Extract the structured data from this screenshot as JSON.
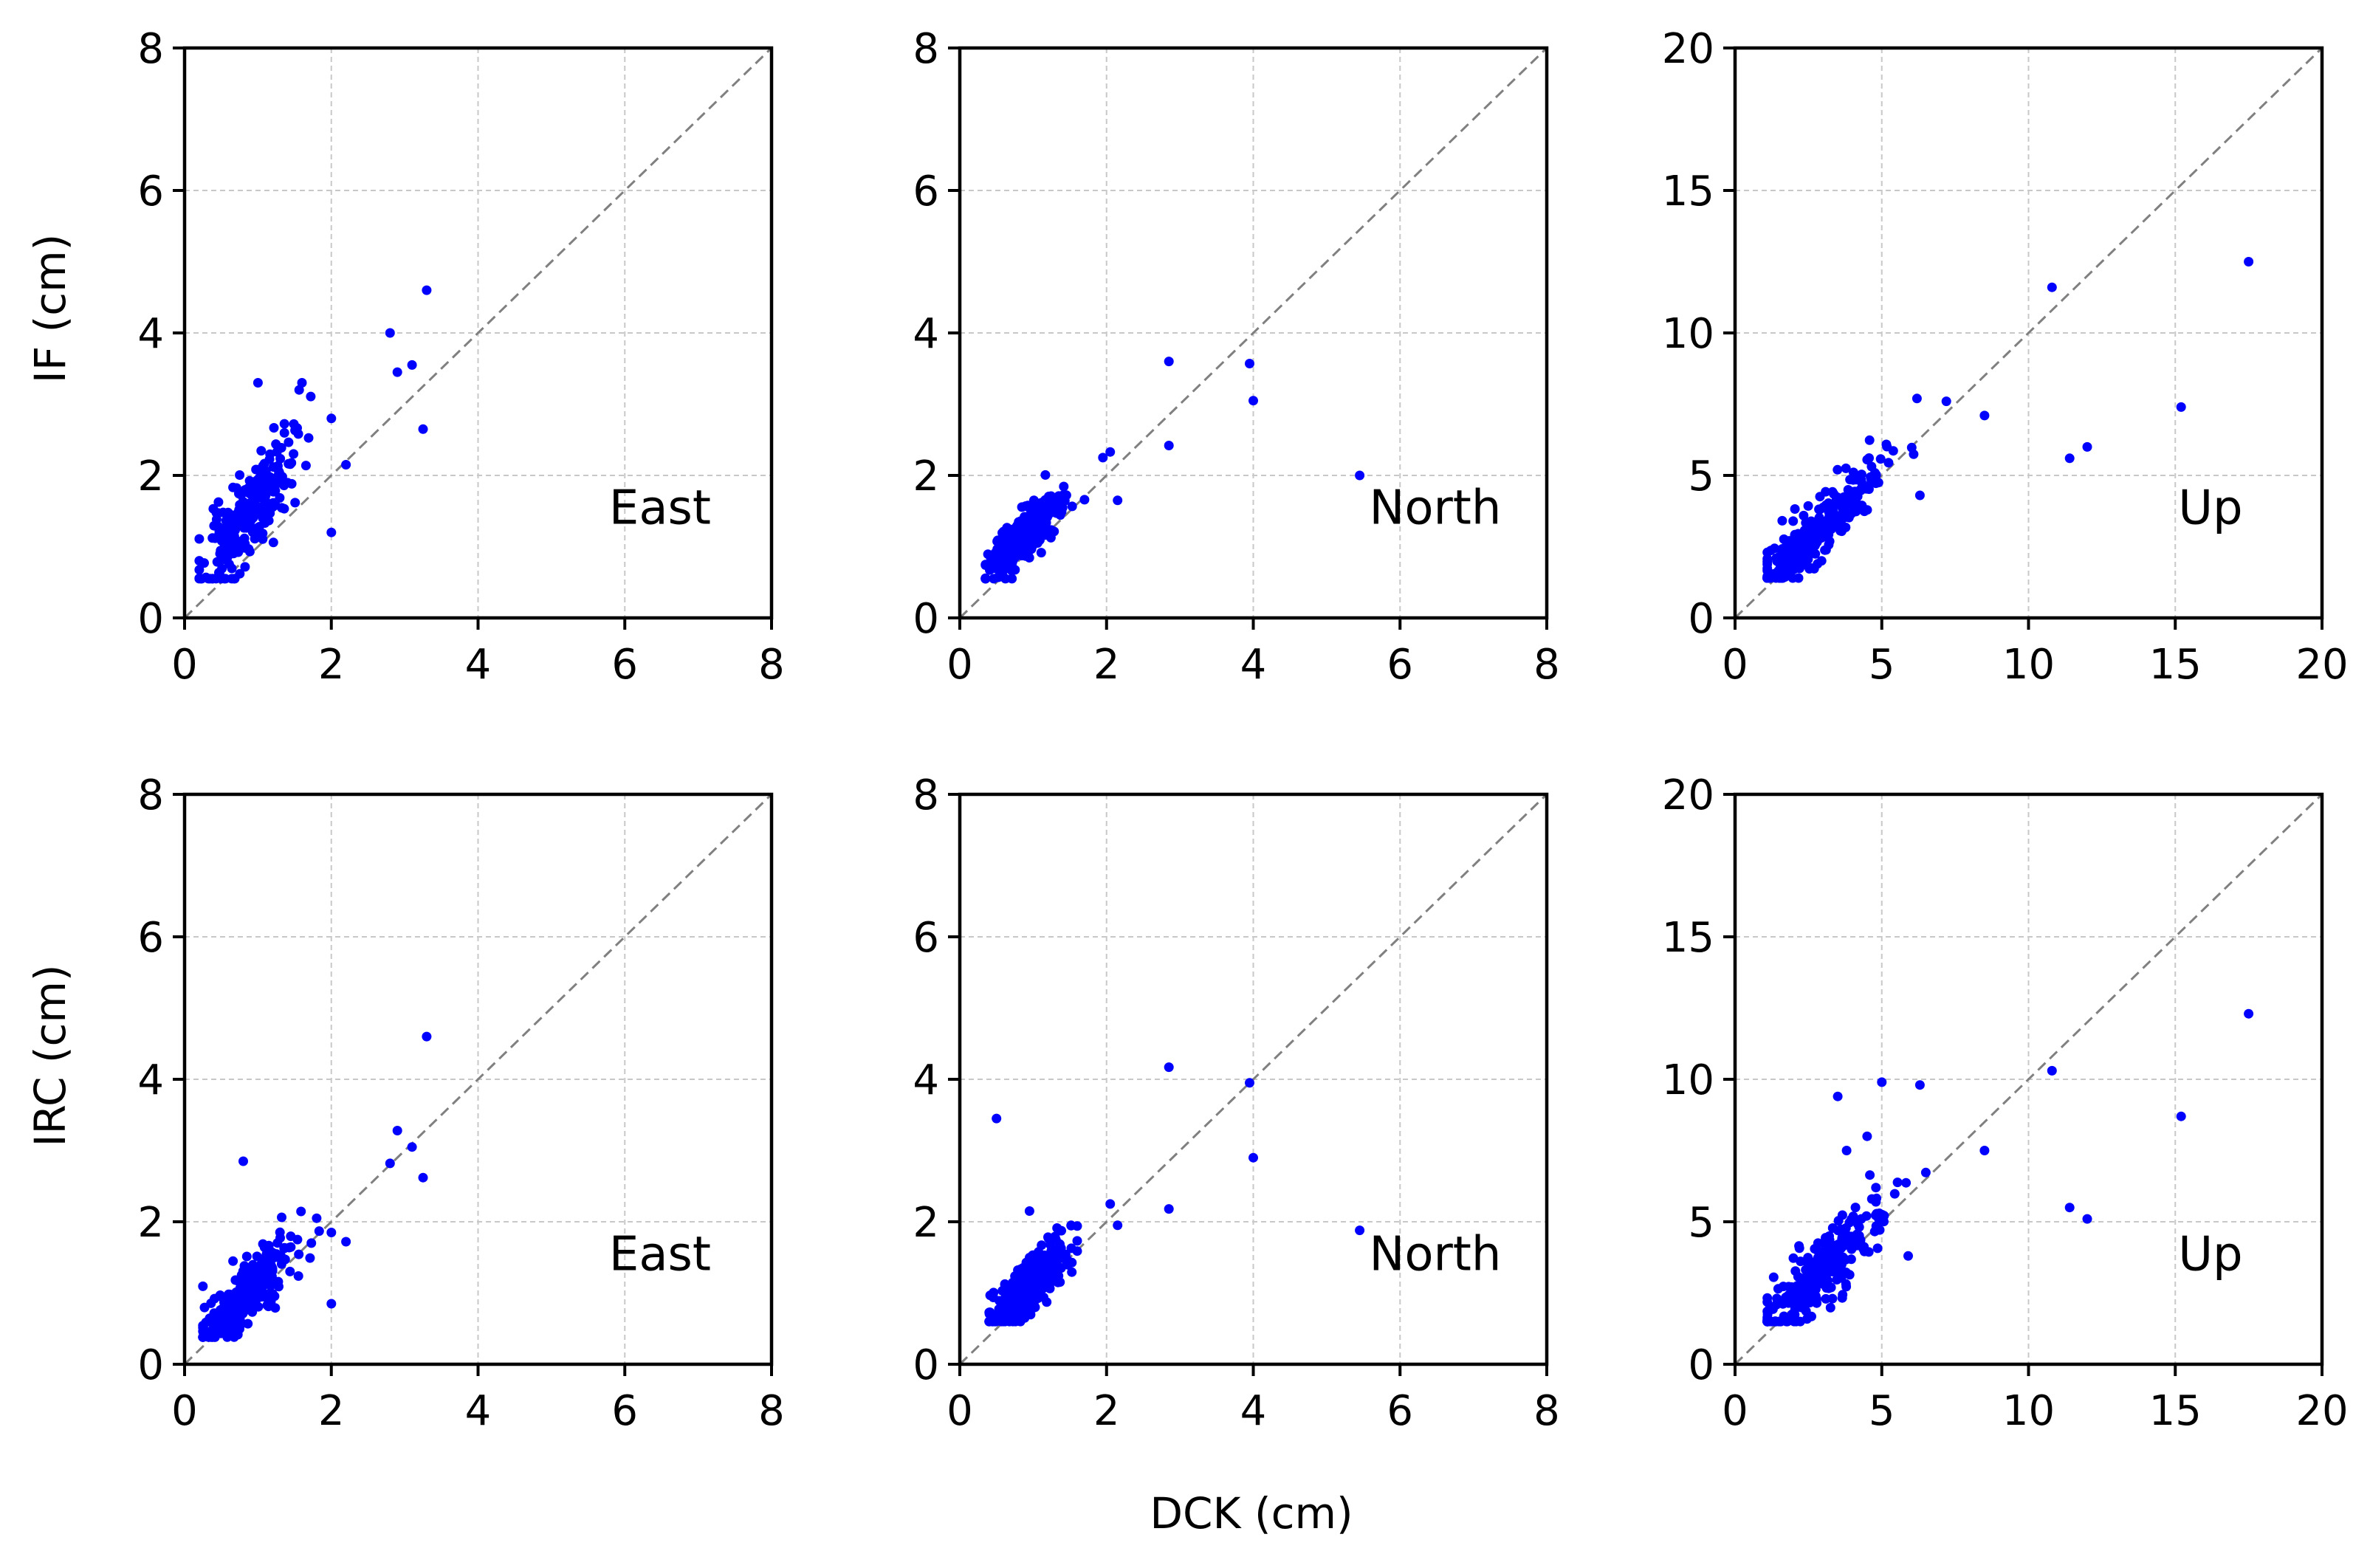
{
  "figure": {
    "xlabel": "DCK (cm)",
    "row_ylabels": [
      "IF (cm)",
      "IRC (cm)"
    ]
  },
  "colors": {
    "points": "#0000ff",
    "identity_line": "#808080",
    "grid": "#c8c8c8",
    "axes": "#000000"
  },
  "chart_data": [
    {
      "type": "scatter",
      "panel": "row1-col1",
      "annotation": "East",
      "xlabel": "",
      "ylabel": "IF (cm)",
      "xlim": [
        0,
        8
      ],
      "ylim": [
        0,
        8
      ],
      "xticks": [
        0,
        2,
        4,
        6,
        8
      ],
      "yticks": [
        0,
        2,
        4,
        6,
        8
      ],
      "grid": true,
      "identity_line": true,
      "outliers": [
        [
          3.3,
          4.6
        ],
        [
          2.8,
          4.0
        ],
        [
          3.1,
          3.55
        ],
        [
          2.9,
          3.45
        ],
        [
          3.25,
          2.65
        ],
        [
          2.2,
          2.15
        ],
        [
          2.0,
          2.8
        ],
        [
          2.0,
          1.2
        ],
        [
          1.6,
          3.3
        ],
        [
          1.0,
          3.3
        ]
      ],
      "cluster": {
        "count": 260,
        "x_mean": 0.85,
        "x_sd": 0.3,
        "x_min": 0.2,
        "x_max": 1.9,
        "slope": 1.3,
        "intercept": 0.3,
        "noise": 0.32,
        "y_min": 0.55,
        "y_max": 3.2,
        "seed": 11
      }
    },
    {
      "type": "scatter",
      "panel": "row1-col2",
      "annotation": "North",
      "xlabel": "",
      "ylabel": "",
      "xlim": [
        0,
        8
      ],
      "ylim": [
        0,
        8
      ],
      "xticks": [
        0,
        2,
        4,
        6,
        8
      ],
      "yticks": [
        0,
        2,
        4,
        6,
        8
      ],
      "grid": true,
      "identity_line": true,
      "outliers": [
        [
          2.85,
          3.6
        ],
        [
          3.95,
          3.57
        ],
        [
          4.0,
          3.05
        ],
        [
          2.85,
          2.42
        ],
        [
          5.45,
          2.0
        ],
        [
          2.15,
          1.65
        ],
        [
          2.05,
          2.33
        ],
        [
          1.95,
          2.25
        ]
      ],
      "cluster": {
        "count": 300,
        "x_mean": 0.85,
        "x_sd": 0.25,
        "x_min": 0.35,
        "x_max": 1.7,
        "slope": 1.0,
        "intercept": 0.25,
        "noise": 0.18,
        "y_min": 0.55,
        "y_max": 2.1,
        "seed": 23
      }
    },
    {
      "type": "scatter",
      "panel": "row1-col3",
      "annotation": "Up",
      "xlabel": "",
      "ylabel": "",
      "xlim": [
        0,
        20
      ],
      "ylim": [
        0,
        20
      ],
      "xticks": [
        0,
        5,
        10,
        15,
        20
      ],
      "yticks": [
        0,
        5,
        10,
        15,
        20
      ],
      "grid": true,
      "identity_line": true,
      "outliers": [
        [
          17.5,
          12.5
        ],
        [
          10.8,
          11.6
        ],
        [
          15.2,
          7.4
        ],
        [
          12.0,
          6.0
        ],
        [
          11.4,
          5.6
        ],
        [
          8.5,
          7.1
        ],
        [
          7.2,
          7.6
        ],
        [
          6.2,
          7.7
        ],
        [
          6.3,
          4.3
        ]
      ],
      "cluster": {
        "count": 280,
        "x_mean": 2.9,
        "x_sd": 1.1,
        "x_min": 1.1,
        "x_max": 6.8,
        "slope": 1.0,
        "intercept": 0.25,
        "noise": 0.5,
        "y_min": 1.4,
        "y_max": 7.5,
        "seed": 37
      }
    },
    {
      "type": "scatter",
      "panel": "row2-col1",
      "annotation": "East",
      "xlabel": "",
      "ylabel": "IRC (cm)",
      "xlim": [
        0,
        8
      ],
      "ylim": [
        0,
        8
      ],
      "xticks": [
        0,
        2,
        4,
        6,
        8
      ],
      "yticks": [
        0,
        2,
        4,
        6,
        8
      ],
      "grid": true,
      "identity_line": true,
      "outliers": [
        [
          3.3,
          4.6
        ],
        [
          2.9,
          3.28
        ],
        [
          3.1,
          3.05
        ],
        [
          2.8,
          2.82
        ],
        [
          3.25,
          2.62
        ],
        [
          2.2,
          1.72
        ],
        [
          2.0,
          1.85
        ],
        [
          2.0,
          0.85
        ],
        [
          0.8,
          2.85
        ],
        [
          1.8,
          2.05
        ]
      ],
      "cluster": {
        "count": 260,
        "x_mean": 0.85,
        "x_sd": 0.3,
        "x_min": 0.25,
        "x_max": 1.9,
        "slope": 1.0,
        "intercept": 0.15,
        "noise": 0.25,
        "y_min": 0.38,
        "y_max": 2.2,
        "seed": 41
      }
    },
    {
      "type": "scatter",
      "panel": "row2-col2",
      "annotation": "North",
      "xlabel": "DCK (cm)",
      "ylabel": "",
      "xlim": [
        0,
        8
      ],
      "ylim": [
        0,
        8
      ],
      "xticks": [
        0,
        2,
        4,
        6,
        8
      ],
      "yticks": [
        0,
        2,
        4,
        6,
        8
      ],
      "grid": true,
      "identity_line": true,
      "outliers": [
        [
          2.85,
          4.17
        ],
        [
          3.95,
          3.95
        ],
        [
          4.0,
          2.9
        ],
        [
          2.85,
          2.18
        ],
        [
          5.45,
          1.88
        ],
        [
          0.5,
          3.45
        ],
        [
          2.05,
          2.25
        ],
        [
          2.15,
          1.95
        ],
        [
          0.95,
          2.15
        ]
      ],
      "cluster": {
        "count": 320,
        "x_mean": 0.95,
        "x_sd": 0.25,
        "x_min": 0.4,
        "x_max": 1.6,
        "slope": 0.85,
        "intercept": 0.3,
        "noise": 0.2,
        "y_min": 0.6,
        "y_max": 1.95,
        "seed": 53
      }
    },
    {
      "type": "scatter",
      "panel": "row2-col3",
      "annotation": "Up",
      "xlabel": "",
      "ylabel": "",
      "xlim": [
        0,
        20
      ],
      "ylim": [
        0,
        20
      ],
      "xticks": [
        0,
        5,
        10,
        15,
        20
      ],
      "yticks": [
        0,
        5,
        10,
        15,
        20
      ],
      "grid": true,
      "identity_line": true,
      "outliers": [
        [
          17.5,
          12.3
        ],
        [
          10.8,
          10.3
        ],
        [
          15.2,
          8.7
        ],
        [
          12.0,
          5.1
        ],
        [
          11.4,
          5.5
        ],
        [
          8.5,
          7.5
        ],
        [
          3.5,
          9.4
        ],
        [
          5.0,
          9.9
        ],
        [
          6.3,
          9.8
        ],
        [
          4.5,
          8.0
        ],
        [
          3.8,
          7.5
        ],
        [
          4.8,
          5.7
        ],
        [
          5.9,
          3.8
        ]
      ],
      "cluster": {
        "count": 280,
        "x_mean": 2.9,
        "x_sd": 1.1,
        "x_min": 1.1,
        "x_max": 6.5,
        "slope": 1.0,
        "intercept": 0.35,
        "noise": 0.6,
        "y_min": 1.5,
        "y_max": 8.5,
        "seed": 67
      }
    }
  ]
}
